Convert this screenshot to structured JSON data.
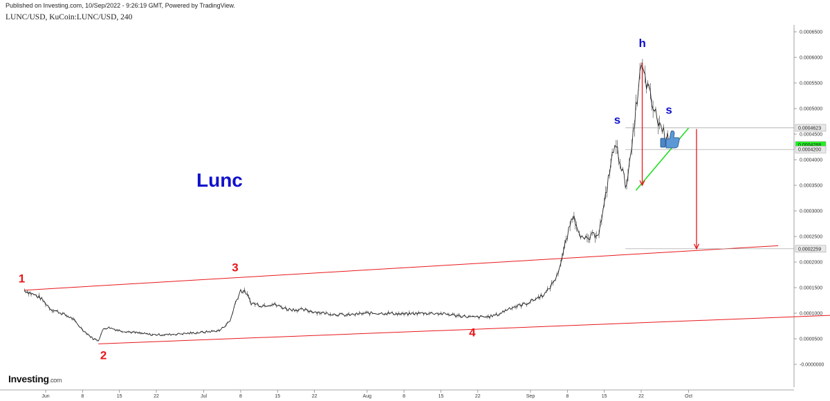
{
  "header": {
    "published": "Published on Investing.com, 10/Sep/2022 - 9:26:19 GMT, Powered by TradingView.",
    "symbol": "LUNC/USD, KuCoin:LUNC/USD, 240"
  },
  "logo": {
    "main": "Investing",
    "suffix": ".com"
  },
  "colors": {
    "trendline": "#e8161a",
    "triangle": "#22dd22",
    "pattern_text": "#1111cc",
    "wave_text": "#e8161a",
    "current_price_bg": "#22ee22"
  },
  "chart_data": {
    "type": "line",
    "title": "Lunc",
    "y_axis": {
      "range": [
        -5e-05,
        0.00066
      ],
      "ticks": [
        "0.0006500",
        "0.0006000",
        "0.0005500",
        "0.0005000",
        "0.0004500",
        "0.0004000",
        "0.0003500",
        "0.0003000",
        "0.0002500",
        "0.0002000",
        "0.0001500",
        "0.0001000",
        "0.0000500",
        "-0.0000000"
      ],
      "tick_values": [
        0.00065,
        0.0006,
        0.00055,
        0.0005,
        0.00045,
        0.0004,
        0.00035,
        0.0003,
        0.00025,
        0.0002,
        0.00015,
        0.0001,
        5e-05,
        0
      ]
    },
    "x_axis": {
      "ticks": [
        "Jun",
        "8",
        "15",
        "22",
        "Jul",
        "8",
        "15",
        "22",
        "Aug",
        "8",
        "15",
        "22",
        "Sep",
        "8",
        "15",
        "22",
        "Oct"
      ],
      "tick_days": [
        1,
        8,
        15,
        22,
        31,
        38,
        45,
        52,
        62,
        69,
        76,
        83,
        93,
        100,
        107,
        114,
        123
      ]
    },
    "price_labels": [
      {
        "text": "0.0004623",
        "value": 0.0004623
      },
      {
        "text": "0.0004288",
        "value": 0.0004288,
        "current": true
      },
      {
        "text": "0.0004200",
        "value": 0.00042
      },
      {
        "text": "0.0002259",
        "value": 0.0002259
      }
    ],
    "series": [
      {
        "values": [
          [
            -3,
            0.000145
          ],
          [
            0,
            0.00013
          ],
          [
            2,
            0.000108
          ],
          [
            4,
            0.0001
          ],
          [
            6,
            9e-05
          ],
          [
            8,
            6.8e-05
          ],
          [
            10,
            5e-05
          ],
          [
            11,
            4.7e-05
          ],
          [
            12,
            7e-05
          ],
          [
            13,
            7.2e-05
          ],
          [
            15,
            6.6e-05
          ],
          [
            18,
            6.2e-05
          ],
          [
            21,
            5.8e-05
          ],
          [
            24,
            5.8e-05
          ],
          [
            27,
            6e-05
          ],
          [
            30,
            6.2e-05
          ],
          [
            34,
            6.6e-05
          ],
          [
            36,
            8.5e-05
          ],
          [
            37,
            0.00012
          ],
          [
            38,
            0.000145
          ],
          [
            39,
            0.00014
          ],
          [
            40,
            0.00012
          ],
          [
            42,
            0.000115
          ],
          [
            44,
            0.000118
          ],
          [
            47,
            0.000108
          ],
          [
            50,
            0.000106
          ],
          [
            54,
            0.0001
          ],
          [
            58,
            9.6e-05
          ],
          [
            62,
            0.0001
          ],
          [
            66,
            0.0001
          ],
          [
            69,
            9.8e-05
          ],
          [
            72,
            0.0001
          ],
          [
            75,
            0.0001
          ],
          [
            78,
            9.7e-05
          ],
          [
            82,
            9.2e-05
          ],
          [
            85,
            9.3e-05
          ],
          [
            87,
            9.8e-05
          ],
          [
            89,
            0.00011
          ],
          [
            92,
            0.000118
          ],
          [
            94,
            0.000128
          ],
          [
            96,
            0.00014
          ],
          [
            98,
            0.000172
          ],
          [
            99,
            0.00021
          ],
          [
            100,
            0.00025
          ],
          [
            101,
            0.000292
          ],
          [
            102,
            0.000268
          ],
          [
            103,
            0.000242
          ],
          [
            104,
            0.000245
          ],
          [
            106,
            0.00026
          ],
          [
            107,
            0.00031
          ],
          [
            108,
            0.00038
          ],
          [
            109,
            0.00043
          ],
          [
            110,
            0.0004
          ],
          [
            111,
            0.00035
          ],
          [
            112,
            0.0004
          ],
          [
            113,
            0.0005
          ],
          [
            114,
            0.00058
          ],
          [
            115,
            0.00055
          ],
          [
            116,
            0.00051
          ],
          [
            117,
            0.00048
          ],
          [
            118,
            0.00046
          ],
          [
            119,
            0.00044
          ],
          [
            120,
            0.000445
          ]
        ]
      }
    ],
    "annotations": {
      "title": "Lunc",
      "waves": [
        "1",
        "2",
        "3",
        "4"
      ],
      "pattern": [
        "s",
        "h",
        "s"
      ]
    },
    "trendlines": {
      "upper": [
        [
          -3,
          0.000145
        ],
        [
          140,
          0.000232
        ]
      ],
      "lower": [
        [
          11,
          4e-05
        ],
        [
          168,
          0.000103
        ]
      ]
    }
  }
}
